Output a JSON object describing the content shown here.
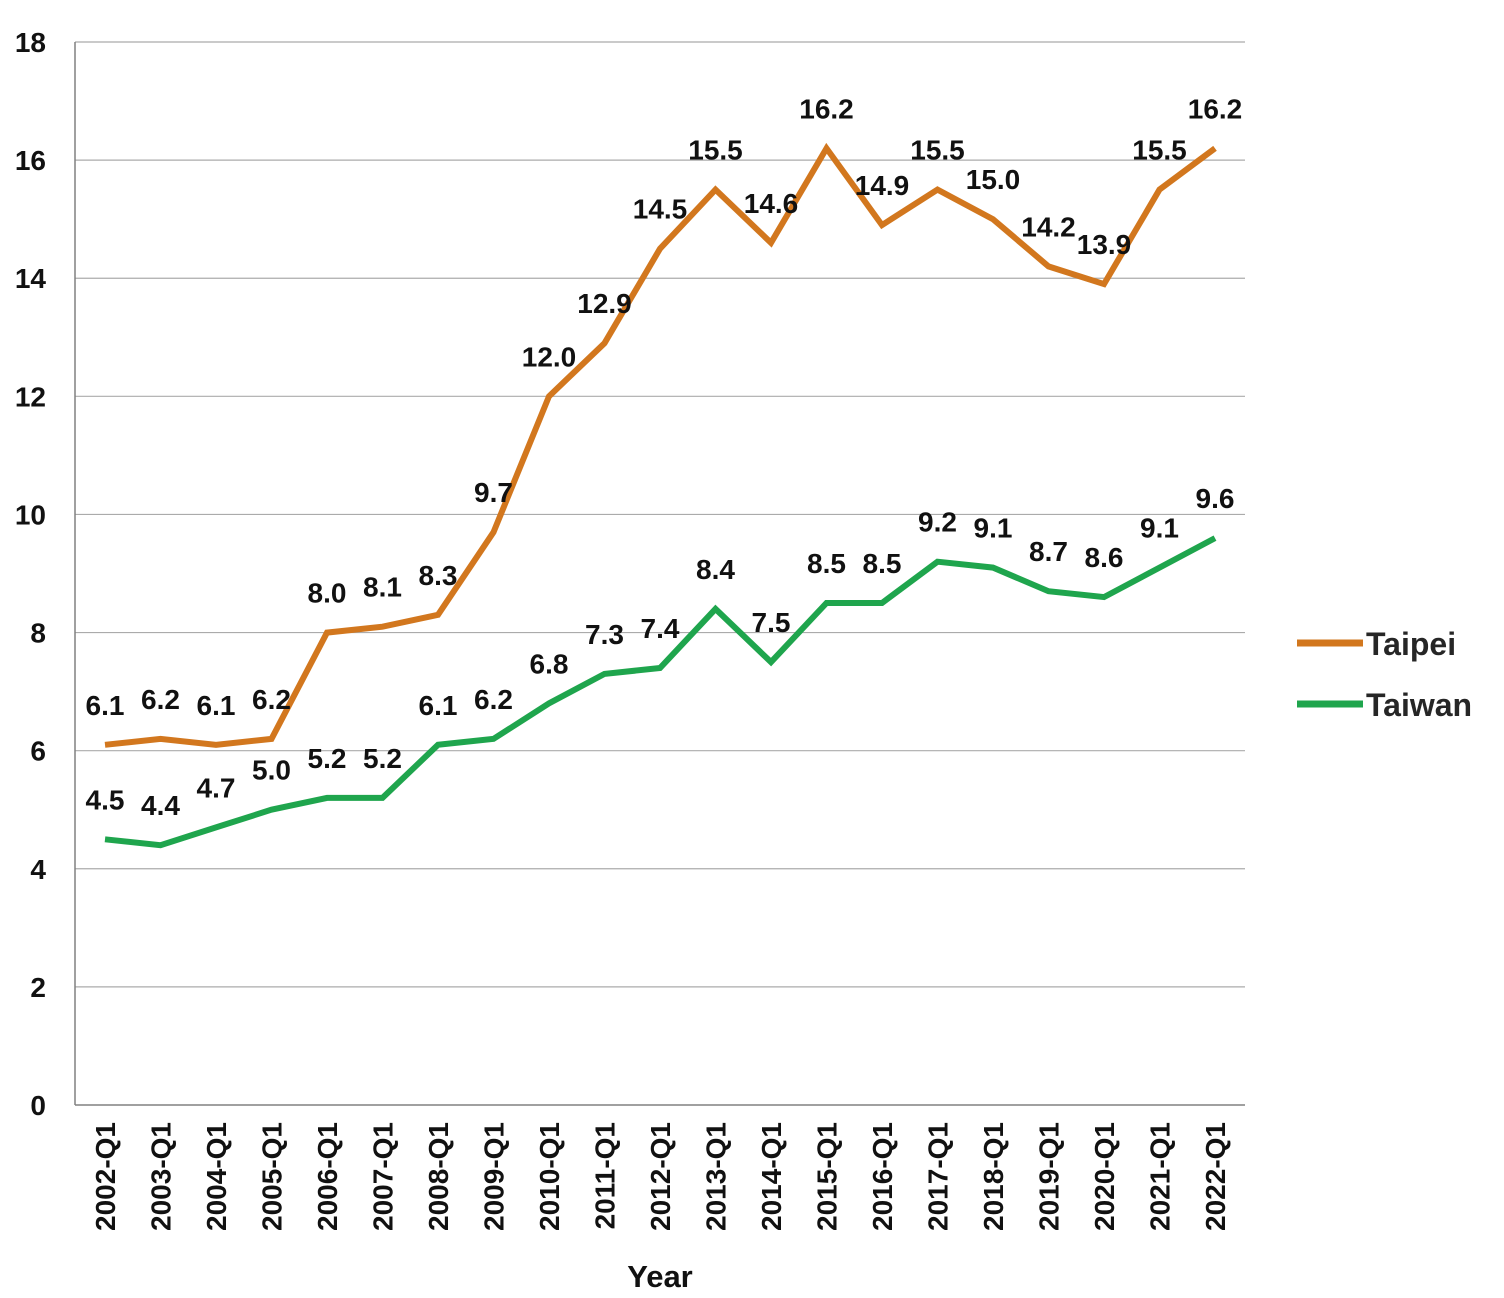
{
  "chart_data": {
    "type": "line",
    "title": "",
    "xlabel": "Year",
    "ylabel": "",
    "ylim": [
      0,
      18
    ],
    "yticks": [
      0,
      2,
      4,
      6,
      8,
      10,
      12,
      14,
      16,
      18
    ],
    "grid": true,
    "legend_position": "right",
    "x": [
      "2002-Q1",
      "2003-Q1",
      "2004-Q1",
      "2005-Q1",
      "2006-Q1",
      "2007-Q1",
      "2008-Q1",
      "2009-Q1",
      "2010-Q1",
      "2011-Q1",
      "2012-Q1",
      "2013-Q1",
      "2014-Q1",
      "2015-Q1",
      "2016-Q1",
      "2017-Q1",
      "2018-Q1",
      "2019-Q1",
      "2020-Q1",
      "2021-Q1",
      "2022-Q1"
    ],
    "series": [
      {
        "name": "Taipei",
        "color": "#D2771E",
        "values": [
          6.1,
          6.2,
          6.1,
          6.2,
          8.0,
          8.1,
          8.3,
          9.7,
          12.0,
          12.9,
          14.5,
          15.5,
          14.6,
          16.2,
          14.9,
          15.5,
          15.0,
          14.2,
          13.9,
          15.5,
          16.2
        ],
        "labels": [
          "6.1",
          "6.2",
          "6.1",
          "6.2",
          "8.0",
          "8.1",
          "8.3",
          "9.7",
          "12.0",
          "12.9",
          "14.5",
          "15.5",
          "14.6",
          "16.2",
          "14.9",
          "15.5",
          "15.0",
          "14.2",
          "13.9",
          "15.5",
          "16.2"
        ]
      },
      {
        "name": "Taiwan",
        "color": "#1FA54D",
        "values": [
          4.5,
          4.4,
          4.7,
          5.0,
          5.2,
          5.2,
          6.1,
          6.2,
          6.8,
          7.3,
          7.4,
          8.4,
          7.5,
          8.5,
          8.5,
          9.2,
          9.1,
          8.7,
          8.6,
          9.1,
          9.6
        ],
        "labels": [
          "4.5",
          "4.4",
          "4.7",
          "5.0",
          "5.2",
          "5.2",
          "6.1",
          "6.2",
          "6.8",
          "7.3",
          "7.4",
          "8.4",
          "7.5",
          "8.5",
          "8.5",
          "9.2",
          "9.1",
          "8.7",
          "8.6",
          "9.1",
          "9.6"
        ]
      }
    ],
    "colors": {
      "gridline": "#ababab",
      "axis": "#808080",
      "text": "#111111",
      "legend_text": "#262626"
    }
  }
}
